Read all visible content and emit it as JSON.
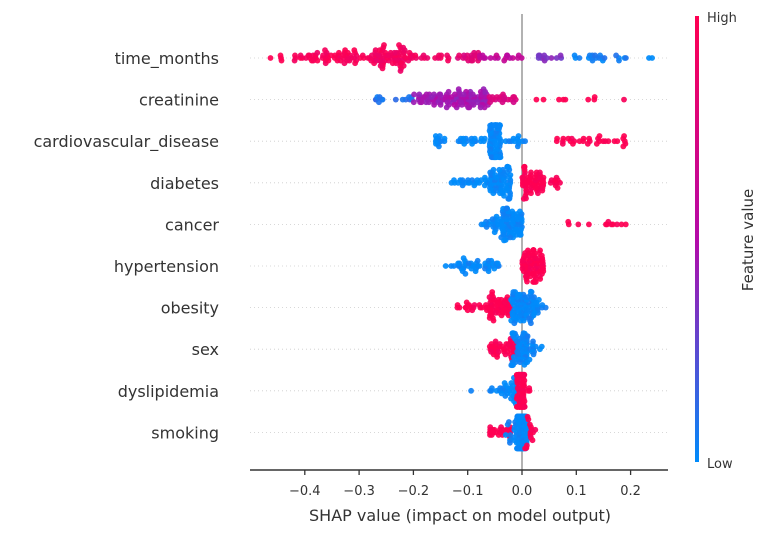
{
  "chart_data": {
    "type": "scatter",
    "subtype": "shap-beeswarm-summary",
    "title": "",
    "xlabel": "SHAP value (impact on model output)",
    "ylabel": "",
    "xlim": [
      -0.5,
      0.27
    ],
    "xticks": [
      -0.4,
      -0.3,
      -0.2,
      -0.1,
      0.0,
      0.1,
      0.2
    ],
    "xtick_labels": [
      "−0.4",
      "−0.3",
      "−0.2",
      "−0.1",
      "0.0",
      "0.1",
      "0.2"
    ],
    "grid": false,
    "zero_line": true,
    "colorbar": {
      "title": "Feature value",
      "high_label": "High",
      "low_label": "Low",
      "high_color": "#ff0052",
      "mid_color": "#b40aa8",
      "low_color": "#008bfb",
      "placement": "right"
    },
    "features": [
      {
        "name": "time_months",
        "groups": [
          {
            "range": [
              -0.47,
              -0.43
            ],
            "n": 4,
            "feature_value": 1.0
          },
          {
            "range": [
              -0.42,
              -0.28
            ],
            "n": 60,
            "feature_value": 0.95
          },
          {
            "range": [
              -0.28,
              -0.2
            ],
            "n": 70,
            "feature_value": 0.92
          },
          {
            "range": [
              -0.2,
              -0.12
            ],
            "n": 14,
            "feature_value": 0.9
          },
          {
            "range": [
              -0.12,
              -0.08
            ],
            "n": 18,
            "feature_value": 0.8
          },
          {
            "range": [
              -0.08,
              0.0
            ],
            "n": 18,
            "feature_value": 0.6
          },
          {
            "range": [
              0.03,
              0.08
            ],
            "n": 12,
            "feature_value": 0.35
          },
          {
            "range": [
              0.09,
              0.2
            ],
            "n": 20,
            "feature_value": 0.05
          },
          {
            "range": [
              0.23,
              0.24
            ],
            "n": 2,
            "feature_value": 0.0
          }
        ]
      },
      {
        "name": "creatinine",
        "groups": [
          {
            "range": [
              -0.28,
              -0.2
            ],
            "n": 14,
            "feature_value": 0.1
          },
          {
            "range": [
              -0.2,
              -0.06
            ],
            "n": 110,
            "feature_value": 0.45
          },
          {
            "range": [
              -0.06,
              -0.01
            ],
            "n": 20,
            "feature_value": 0.75
          },
          {
            "range": [
              0.02,
              0.21
            ],
            "n": 9,
            "feature_value": 1.0
          }
        ]
      },
      {
        "name": "cardiovascular_disease",
        "groups": [
          {
            "range": [
              -0.16,
              -0.06
            ],
            "n": 30,
            "feature_value": 0.0
          },
          {
            "range": [
              -0.06,
              -0.04
            ],
            "n": 80,
            "feature_value": 0.0
          },
          {
            "range": [
              -0.04,
              0.01
            ],
            "n": 14,
            "feature_value": 0.0
          },
          {
            "range": [
              0.06,
              0.2
            ],
            "n": 30,
            "feature_value": 1.0
          }
        ]
      },
      {
        "name": "diabetes",
        "groups": [
          {
            "range": [
              -0.13,
              -0.06
            ],
            "n": 24,
            "feature_value": 0.0
          },
          {
            "range": [
              -0.06,
              -0.02
            ],
            "n": 70,
            "feature_value": 0.0
          },
          {
            "range": [
              0.0,
              0.04
            ],
            "n": 60,
            "feature_value": 1.0
          },
          {
            "range": [
              0.04,
              0.07
            ],
            "n": 10,
            "feature_value": 1.0
          }
        ]
      },
      {
        "name": "cancer",
        "groups": [
          {
            "range": [
              -0.08,
              -0.04
            ],
            "n": 20,
            "feature_value": 0.0
          },
          {
            "range": [
              -0.04,
              -0.0
            ],
            "n": 80,
            "feature_value": 0.0
          },
          {
            "range": [
              0.06,
              0.21
            ],
            "n": 12,
            "feature_value": 1.0
          }
        ]
      },
      {
        "name": "hypertension",
        "groups": [
          {
            "range": [
              -0.15,
              -0.12
            ],
            "n": 3,
            "feature_value": 0.0
          },
          {
            "range": [
              -0.12,
              -0.04
            ],
            "n": 40,
            "feature_value": 0.0
          },
          {
            "range": [
              -0.0,
              0.04
            ],
            "n": 80,
            "feature_value": 1.0
          }
        ]
      },
      {
        "name": "obesity",
        "groups": [
          {
            "range": [
              -0.12,
              -0.06
            ],
            "n": 20,
            "feature_value": 1.0
          },
          {
            "range": [
              -0.06,
              -0.02
            ],
            "n": 55,
            "feature_value": 1.0
          },
          {
            "range": [
              -0.02,
              0.03
            ],
            "n": 90,
            "feature_value": 0.0
          },
          {
            "range": [
              0.03,
              0.045
            ],
            "n": 4,
            "feature_value": 0.0
          }
        ]
      },
      {
        "name": "sex",
        "groups": [
          {
            "range": [
              -0.06,
              -0.01
            ],
            "n": 45,
            "feature_value": 1.0
          },
          {
            "range": [
              -0.02,
              0.01
            ],
            "n": 50,
            "feature_value": 0.0
          },
          {
            "range": [
              0.0,
              0.04
            ],
            "n": 20,
            "feature_value": 0.0
          }
        ]
      },
      {
        "name": "dyslipidemia",
        "groups": [
          {
            "range": [
              -0.095,
              -0.09
            ],
            "n": 1,
            "feature_value": 0.0
          },
          {
            "range": [
              -0.06,
              -0.01
            ],
            "n": 35,
            "feature_value": 0.0
          },
          {
            "range": [
              -0.01,
              0.005
            ],
            "n": 90,
            "feature_value": 1.0
          },
          {
            "range": [
              0.01,
              0.02
            ],
            "n": 3,
            "feature_value": 1.0
          }
        ]
      },
      {
        "name": "smoking",
        "groups": [
          {
            "range": [
              -0.06,
              -0.02
            ],
            "n": 25,
            "feature_value": 1.0
          },
          {
            "range": [
              -0.03,
              0.0
            ],
            "n": 20,
            "feature_value": 0.0
          },
          {
            "range": [
              -0.01,
              0.01
            ],
            "n": 90,
            "feature_value": 0.0
          },
          {
            "range": [
              0.0,
              0.03
            ],
            "n": 14,
            "feature_value": 1.0
          }
        ]
      }
    ]
  }
}
